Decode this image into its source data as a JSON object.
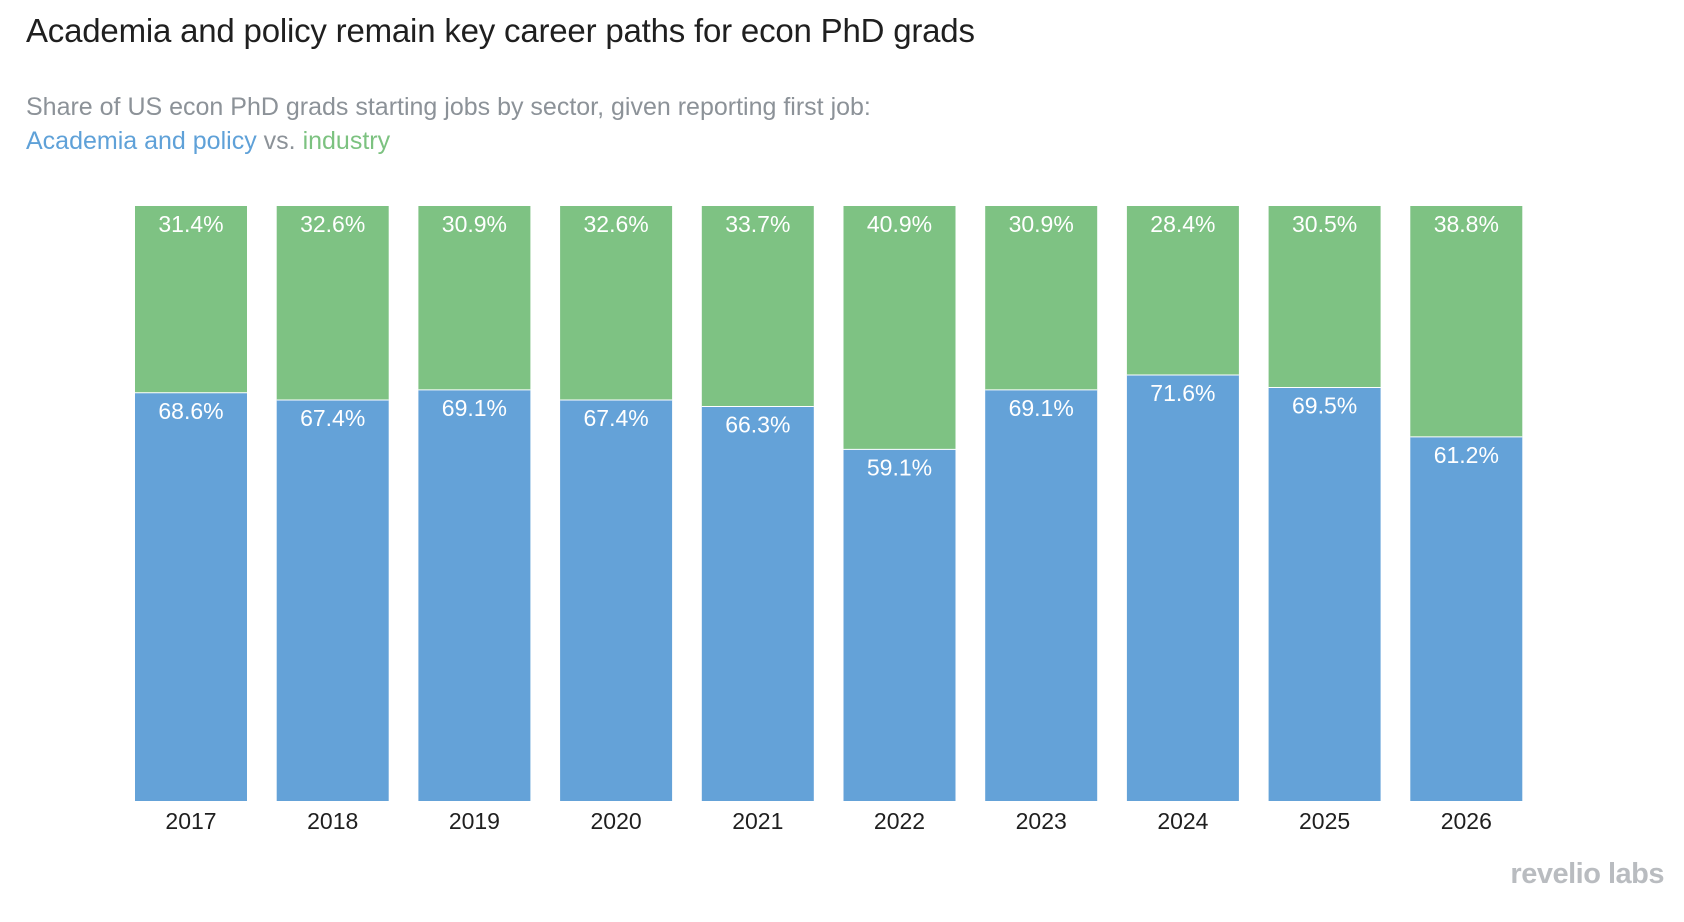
{
  "title": "Academia and policy remain key career paths for econ PhD grads",
  "subtitle": {
    "line1": "Share of US econ PhD grads starting jobs by sector, given reporting first job:",
    "series_a": "Academia and policy",
    "connector": "vs.",
    "series_b": "industry"
  },
  "logo": "revelio labs",
  "colors": {
    "academia": "#64a2d8",
    "industry": "#7ec283",
    "label_text": "#ffffff",
    "axis_text": "#1f1f1f"
  },
  "chart_data": {
    "type": "bar",
    "stacked": true,
    "categories": [
      "2017",
      "2018",
      "2019",
      "2020",
      "2021",
      "2022",
      "2023",
      "2024",
      "2025",
      "2026"
    ],
    "series": [
      {
        "name": "Academia and policy",
        "values": [
          68.6,
          67.4,
          69.1,
          67.4,
          66.3,
          59.1,
          69.1,
          71.6,
          69.5,
          61.2
        ],
        "labels": [
          "68.6%",
          "67.4%",
          "69.1%",
          "67.4%",
          "66.3%",
          "59.1%",
          "69.1%",
          "71.6%",
          "69.5%",
          "61.2%"
        ]
      },
      {
        "name": "industry",
        "values": [
          31.4,
          32.6,
          30.9,
          32.6,
          33.7,
          40.9,
          30.9,
          28.4,
          30.5,
          38.8
        ],
        "labels": [
          "31.4%",
          "32.6%",
          "30.9%",
          "32.6%",
          "33.7%",
          "40.9%",
          "30.9%",
          "28.4%",
          "30.5%",
          "38.8%"
        ]
      }
    ],
    "ylim": [
      0,
      100
    ],
    "grid": false,
    "legend": "subtitle"
  }
}
